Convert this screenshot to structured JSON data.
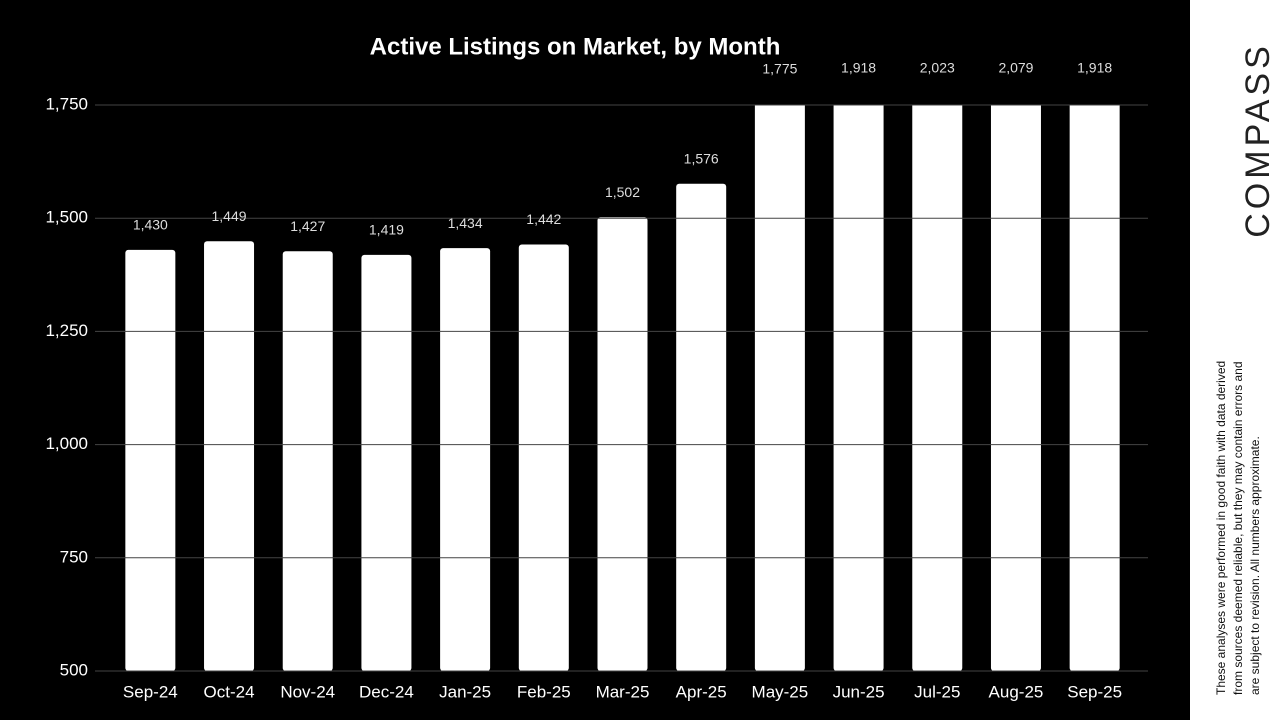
{
  "chart_data": {
    "type": "bar",
    "title": "Active Listings on Market, by Month",
    "categories": [
      "Sep-24",
      "Oct-24",
      "Nov-24",
      "Dec-24",
      "Jan-25",
      "Feb-25",
      "Mar-25",
      "Apr-25",
      "May-25",
      "Jun-25",
      "Jul-25",
      "Aug-25",
      "Sep-25"
    ],
    "values": [
      1430,
      1449,
      1427,
      1419,
      1434,
      1442,
      1502,
      1576,
      1775,
      1918,
      2023,
      2079,
      1918
    ],
    "value_labels": [
      "1,430",
      "1,449",
      "1,427",
      "1,419",
      "1,434",
      "1,442",
      "1,502",
      "1,576",
      "1,775",
      "1,918",
      "2,023",
      "2,079",
      "1,918"
    ],
    "color": "#ffffff",
    "ylim": [
      500,
      1750
    ],
    "yticks": [
      500,
      750,
      {
        "value": 1000,
        "label": "1,000"
      },
      {
        "value": 1250,
        "label": "1,250"
      },
      {
        "value": 1500,
        "label": "1,500"
      },
      {
        "value": 1750,
        "label": "1,750"
      }
    ],
    "grid": true
  },
  "brand": "COMPASS",
  "disclaimer": [
    "These analyses were performed in good faith with data derived",
    "from sources deemed reliable, but they may contain errors and",
    "are subject to revision. All numbers approximate."
  ]
}
